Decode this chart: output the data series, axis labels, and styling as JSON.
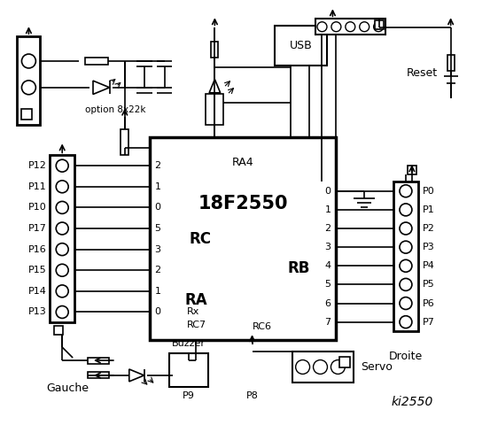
{
  "bg_color": "#ffffff",
  "chip_label": "18F2550",
  "chip_sublabel": "RA4",
  "rc_label": "RC",
  "ra_label": "RA",
  "rb_label": "RB",
  "left_labels": [
    "P12",
    "P11",
    "P10",
    "P17",
    "P16",
    "P15",
    "P14",
    "P13"
  ],
  "right_labels": [
    "P0",
    "P1",
    "P2",
    "P3",
    "P4",
    "P5",
    "P6",
    "P7"
  ],
  "rc_pin_labels": [
    "2",
    "1",
    "0"
  ],
  "ra_pin_labels": [
    "5",
    "3",
    "2",
    "1",
    "0"
  ],
  "rb_pin_labels": [
    "0",
    "1",
    "2",
    "3",
    "4",
    "5",
    "6",
    "7"
  ],
  "rx_label": "Rx",
  "rc7_label": "RC7",
  "rc6_label": "RC6",
  "gauche_label": "Gauche",
  "buzzer_label": "Buzzer",
  "p9_label": "P9",
  "p8_label": "P8",
  "servo_label": "Servo",
  "reset_label": "Reset",
  "droite_label": "Droite",
  "watermark": "ki2550",
  "option_label": "option 8x22k",
  "usb_label": "USB"
}
